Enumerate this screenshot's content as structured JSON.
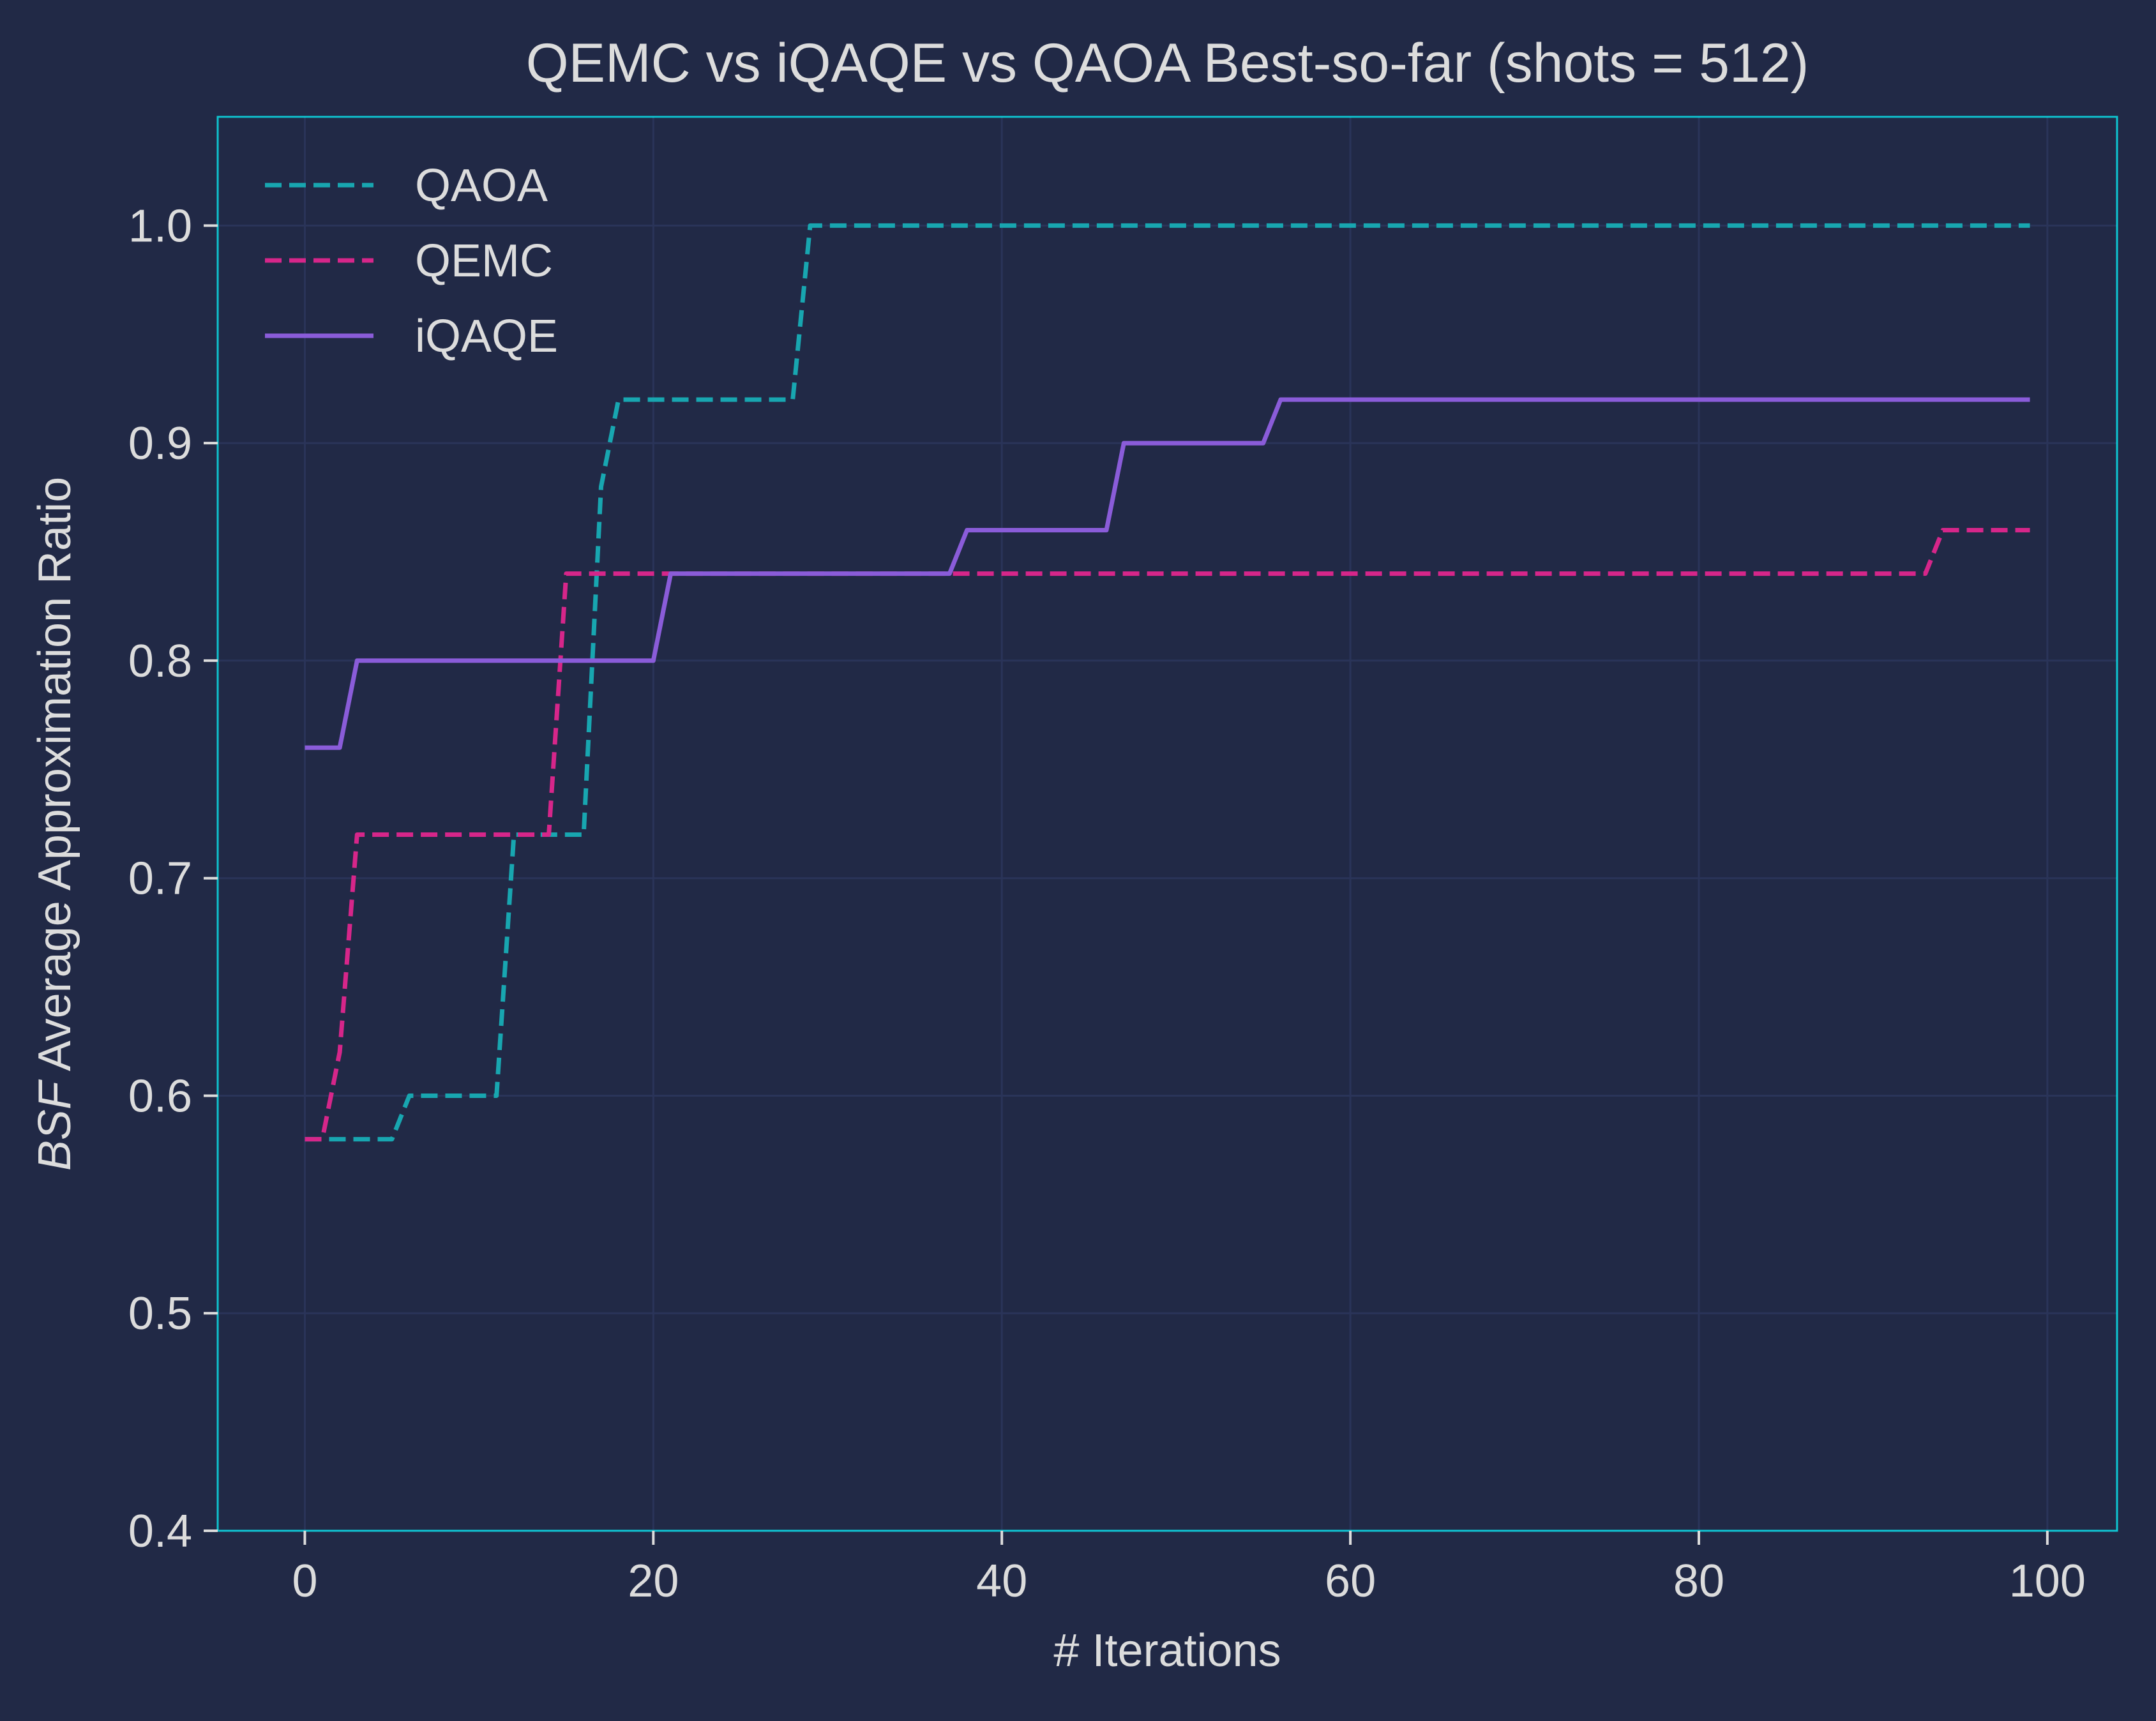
{
  "chart_data": {
    "type": "line",
    "title": "QEMC vs iQAQE vs QAOA Best-so-far (shots = 512)",
    "xlabel": "# Iterations",
    "ylabel_italic": "BSF",
    "ylabel_rest": " Average Approximation Ratio",
    "xlim": [
      -5,
      104
    ],
    "ylim": [
      0.4,
      1.05
    ],
    "xticks": [
      0,
      20,
      40,
      60,
      80,
      100
    ],
    "xtick_labels": [
      "0",
      "20",
      "40",
      "60",
      "80",
      "100"
    ],
    "yticks": [
      0.4,
      0.5,
      0.6,
      0.7,
      0.8,
      0.9,
      1.0
    ],
    "ytick_labels": [
      "0.4",
      "0.5",
      "0.6",
      "0.7",
      "0.8",
      "0.9",
      "1.0"
    ],
    "grid": true,
    "legend_position": "top-left",
    "colors": {
      "background": "#212946",
      "grid": "#2A3459",
      "frame": "#08F7FE",
      "text": "#dcdcdc"
    },
    "series": [
      {
        "name": "QAOA",
        "color": "#18A6B0",
        "dash": "dashed",
        "points": [
          [
            0,
            0.58
          ],
          [
            5,
            0.58
          ],
          [
            6,
            0.6
          ],
          [
            11,
            0.6
          ],
          [
            12,
            0.72
          ],
          [
            16,
            0.72
          ],
          [
            17,
            0.88
          ],
          [
            18,
            0.92
          ],
          [
            28,
            0.92
          ],
          [
            29,
            1.0
          ],
          [
            99,
            1.0
          ]
        ]
      },
      {
        "name": "QEMC",
        "color": "#D6268A",
        "dash": "dashed",
        "points": [
          [
            0,
            0.58
          ],
          [
            1,
            0.58
          ],
          [
            2,
            0.62
          ],
          [
            3,
            0.72
          ],
          [
            14,
            0.72
          ],
          [
            15,
            0.84
          ],
          [
            93,
            0.84
          ],
          [
            94,
            0.86
          ],
          [
            99,
            0.86
          ]
        ]
      },
      {
        "name": "iQAQE",
        "color": "#8A5CD9",
        "dash": "solid",
        "points": [
          [
            0,
            0.76
          ],
          [
            2,
            0.76
          ],
          [
            3,
            0.8
          ],
          [
            20,
            0.8
          ],
          [
            21,
            0.84
          ],
          [
            37,
            0.84
          ],
          [
            38,
            0.86
          ],
          [
            46,
            0.86
          ],
          [
            47,
            0.9
          ],
          [
            55,
            0.9
          ],
          [
            56,
            0.92
          ],
          [
            99,
            0.92
          ]
        ]
      }
    ]
  }
}
